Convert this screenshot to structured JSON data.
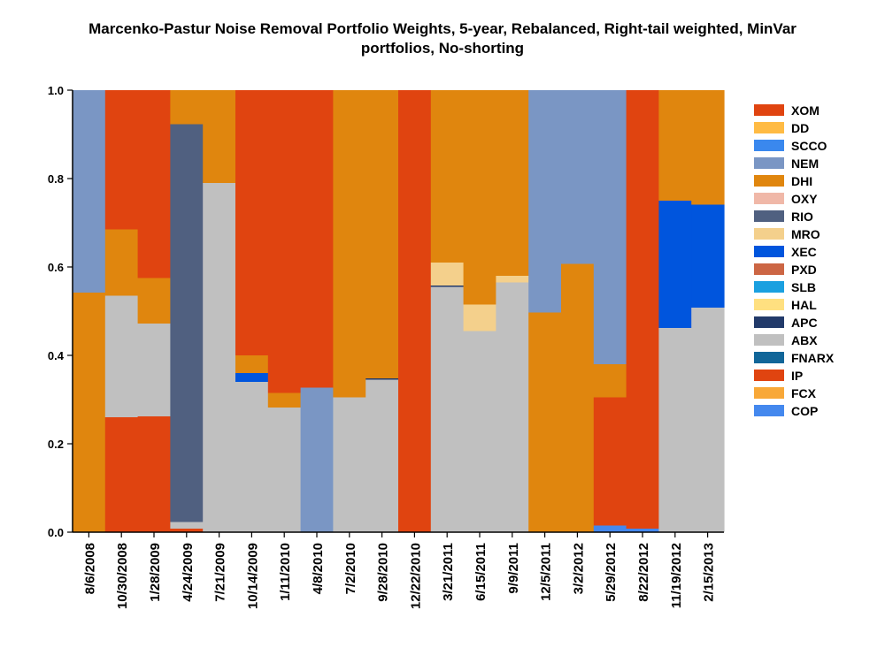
{
  "chart_data": {
    "type": "bar",
    "stacked": true,
    "title_line1": "Marcenko-Pastur Noise Removal Portfolio Weights, 5-year, Rebalanced, Right-tail weighted, MinVar",
    "title_line2": "portfolios, No-shorting",
    "xlabel": "",
    "ylabel": "",
    "ylim": [
      0,
      1
    ],
    "yticks": [
      "0.0",
      "0.2",
      "0.4",
      "0.6",
      "0.8",
      "1.0"
    ],
    "grid": false,
    "legend_placement": "right",
    "categories": [
      "8/6/2008",
      "10/30/2008",
      "1/28/2009",
      "4/24/2009",
      "7/21/2009",
      "10/14/2009",
      "1/11/2010",
      "4/8/2010",
      "7/2/2010",
      "9/28/2010",
      "12/22/2010",
      "3/21/2011",
      "6/15/2011",
      "9/9/2011",
      "12/5/2011",
      "3/2/2012",
      "5/29/2012",
      "8/22/2012",
      "11/19/2012",
      "2/15/2013"
    ],
    "labeled_categories": [
      "8/6/2008",
      "10/30/2008",
      "1/28/2009",
      "4/24/2009",
      "7/21/2009",
      "10/14/2009",
      "1/11/2010",
      "4/8/2010",
      "7/2/2010",
      "9/28/2010",
      "12/22/2010",
      "3/21/2011",
      "6/15/2011",
      "9/9/2011",
      "12/5/2011",
      "3/2/2012",
      "5/29/2012",
      "8/22/2012",
      "11/19/2012",
      "2/15/2013"
    ],
    "series": [
      {
        "name": "COP",
        "color": "#4488ee",
        "values": [
          0,
          0,
          0,
          0,
          0,
          0,
          0,
          0,
          0,
          0,
          0,
          0,
          0,
          0,
          0,
          0,
          0.015,
          0.008,
          0,
          0
        ]
      },
      {
        "name": "FCX",
        "color": "#f8a838",
        "values": [
          0,
          0,
          0,
          0,
          0,
          0,
          0,
          0,
          0,
          0,
          0,
          0,
          0,
          0,
          0,
          0,
          0,
          0,
          0,
          0
        ]
      },
      {
        "name": "IP",
        "color": "#e04410",
        "values": [
          0,
          0.26,
          0.262,
          0.008,
          0,
          0,
          0,
          0,
          0,
          0,
          0.665,
          0,
          0,
          0,
          0,
          0,
          0.29,
          0.46,
          0,
          0
        ]
      },
      {
        "name": "FNARX",
        "color": "#116699",
        "values": [
          0,
          0,
          0,
          0,
          0,
          0,
          0,
          0,
          0,
          0,
          0,
          0,
          0,
          0,
          0,
          0,
          0,
          0,
          0,
          0
        ]
      },
      {
        "name": "ABX",
        "color": "#c0c0c0",
        "values": [
          0,
          0.275,
          0.21,
          0.015,
          0.79,
          0.34,
          0.282,
          0,
          0.305,
          0.345,
          0,
          0.555,
          0.455,
          0.565,
          0,
          0,
          0,
          0,
          0.462,
          0.508
        ]
      },
      {
        "name": "APC",
        "color": "#223a6a",
        "values": [
          0,
          0,
          0,
          0,
          0,
          0,
          0,
          0,
          0,
          0.003,
          0,
          0.003,
          0,
          0,
          0,
          0,
          0,
          0,
          0,
          0
        ]
      },
      {
        "name": "HAL",
        "color": "#ffe080",
        "values": [
          0,
          0,
          0,
          0,
          0,
          0,
          0,
          0,
          0,
          0,
          0,
          0,
          0,
          0,
          0,
          0,
          0,
          0,
          0,
          0
        ]
      },
      {
        "name": "SLB",
        "color": "#1aa0e0",
        "values": [
          0,
          0,
          0,
          0,
          0,
          0,
          0,
          0,
          0,
          0,
          0,
          0,
          0,
          0,
          0,
          0,
          0,
          0,
          0,
          0
        ]
      },
      {
        "name": "PXD",
        "color": "#cc6644",
        "values": [
          0,
          0,
          0,
          0,
          0,
          0,
          0,
          0,
          0,
          0,
          0,
          0,
          0,
          0,
          0,
          0,
          0,
          0,
          0,
          0
        ]
      },
      {
        "name": "XEC",
        "color": "#0055dd",
        "values": [
          0,
          0,
          0,
          0,
          0,
          0.02,
          0,
          0,
          0,
          0,
          0,
          0,
          0,
          0,
          0,
          0,
          0,
          0,
          0.288,
          0.233
        ]
      },
      {
        "name": "MRO",
        "color": "#f4d08c",
        "values": [
          0,
          0,
          0,
          0,
          0,
          0,
          0,
          0,
          0,
          0,
          0,
          0.052,
          0.06,
          0.015,
          0,
          0,
          0,
          0,
          0,
          0
        ]
      },
      {
        "name": "RIO",
        "color": "#506080",
        "values": [
          0,
          0,
          0,
          0.9,
          0,
          0,
          0,
          0,
          0,
          0,
          0,
          0,
          0,
          0,
          0,
          0,
          0,
          0,
          0,
          0
        ]
      },
      {
        "name": "OXY",
        "color": "#f0b8a8",
        "values": [
          0,
          0,
          0,
          0,
          0,
          0,
          0,
          0,
          0,
          0,
          0,
          0,
          0,
          0,
          0,
          0,
          0,
          0,
          0,
          0
        ]
      },
      {
        "name": "DHI",
        "color": "#e0860e",
        "values": [
          0.542,
          0.15,
          0.103,
          0.077,
          0.21,
          0.04,
          0.033,
          0,
          0.695,
          0.652,
          0,
          0.39,
          0.485,
          0.42,
          0.497,
          0.607,
          0.075,
          0,
          0.25,
          0.259
        ]
      },
      {
        "name": "NEM",
        "color": "#7a96c4",
        "values": [
          0.458,
          0,
          0,
          0,
          0,
          0,
          0,
          0.327,
          0,
          0,
          0,
          0,
          0,
          0,
          0.503,
          0.393,
          0.62,
          0,
          0,
          0
        ]
      },
      {
        "name": "SCCO",
        "color": "#3a88ee",
        "values": [
          0,
          0,
          0,
          0,
          0,
          0,
          0,
          0,
          0,
          0,
          0,
          0,
          0,
          0,
          0,
          0,
          0,
          0,
          0,
          0
        ]
      },
      {
        "name": "DD",
        "color": "#ffbb44",
        "values": [
          0,
          0,
          0,
          0,
          0,
          0,
          0,
          0,
          0,
          0,
          0,
          0,
          0,
          0,
          0,
          0,
          0,
          0,
          0,
          0
        ]
      },
      {
        "name": "XOM",
        "color": "#e04410",
        "values": [
          0,
          0.315,
          0.425,
          0,
          0,
          0.6,
          0.685,
          0.673,
          0,
          0,
          0.335,
          0,
          0,
          0,
          0,
          0,
          0,
          0.532,
          0,
          0
        ]
      }
    ],
    "legend_order": [
      "XOM",
      "DD",
      "SCCO",
      "NEM",
      "DHI",
      "OXY",
      "RIO",
      "MRO",
      "XEC",
      "PXD",
      "SLB",
      "HAL",
      "APC",
      "ABX",
      "FNARX",
      "IP",
      "FCX",
      "COP"
    ]
  }
}
